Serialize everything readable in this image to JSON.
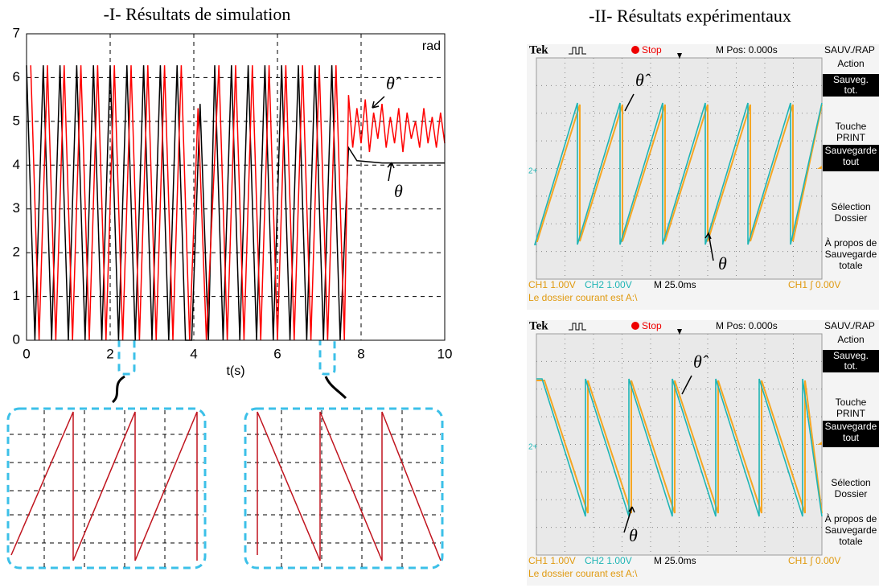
{
  "chart_data": {
    "type": "line",
    "title": "-I- Résultats de simulation",
    "xlabel": "t(s)",
    "unit": "rad",
    "xlim": [
      0,
      10
    ],
    "ylim": [
      0,
      7
    ],
    "xticks": [
      0,
      2,
      4,
      6,
      8,
      10
    ],
    "yticks": [
      0,
      1,
      2,
      3,
      4,
      5,
      6,
      7
    ],
    "grid": true,
    "series": [
      {
        "name": "θ",
        "color": "#000000",
        "x": [
          0,
          0.2,
          0.4,
          0.6,
          0.8,
          1.0,
          1.2,
          1.4,
          1.6,
          1.8,
          2.0,
          2.2,
          2.4,
          2.6,
          2.8,
          3.0,
          3.2,
          3.4,
          3.6,
          3.8,
          3.95,
          4.15,
          4.35,
          4.5,
          4.7,
          4.9,
          5.1,
          5.3,
          5.5,
          5.7,
          5.9,
          6.1,
          6.3,
          6.5,
          6.7,
          6.9,
          7.1,
          7.3,
          7.5,
          7.7,
          7.9,
          8.5,
          9,
          9.5,
          10
        ],
        "values": [
          6.28,
          0,
          6.28,
          0,
          6.28,
          0,
          6.28,
          0,
          6.28,
          0,
          6.28,
          0,
          6.28,
          0,
          6.28,
          0,
          6.28,
          0,
          6.28,
          0,
          0,
          5.4,
          0,
          6.28,
          0,
          6.28,
          0,
          6.28,
          0,
          6.28,
          0,
          6.28,
          0,
          6.28,
          0,
          6.28,
          0,
          6.28,
          0,
          4.4,
          4.1,
          4.05,
          4.05,
          4.05,
          4.05
        ]
      },
      {
        "name": "θ̂",
        "color": "#ff0000",
        "x": [
          0.1,
          0.3,
          0.5,
          0.7,
          0.9,
          1.1,
          1.3,
          1.5,
          1.7,
          1.9,
          2.1,
          2.3,
          2.5,
          2.7,
          2.9,
          3.1,
          3.3,
          3.5,
          3.7,
          3.9,
          4.1,
          4.3,
          4.6,
          4.8,
          5.0,
          5.2,
          5.4,
          5.6,
          5.8,
          6.0,
          6.2,
          6.4,
          6.6,
          6.8,
          7.0,
          7.2,
          7.4,
          7.6,
          7.7,
          7.8,
          7.9,
          8.0,
          8.1,
          8.2,
          8.3,
          8.4,
          8.5,
          8.6,
          8.7,
          8.8,
          8.9,
          9.0,
          9.1,
          9.2,
          9.3,
          9.4,
          9.5,
          9.6,
          9.7,
          9.8,
          9.9,
          10.0
        ],
        "values": [
          6.28,
          0,
          6.28,
          0,
          6.28,
          0,
          6.28,
          0,
          6.28,
          0,
          6.28,
          0,
          6.28,
          0,
          6.28,
          0,
          6.28,
          0,
          6.28,
          0,
          5.3,
          0,
          6.28,
          0,
          6.28,
          0,
          6.28,
          0,
          6.28,
          0,
          6.28,
          0,
          6.28,
          0,
          6.28,
          0,
          6.28,
          0,
          5.6,
          4.4,
          5.3,
          4.5,
          5.5,
          4.3,
          5.2,
          4.6,
          5.4,
          4.4,
          5.1,
          4.5,
          5.3,
          4.3,
          5.2,
          4.6,
          5.0,
          4.4,
          5.3,
          4.5,
          5.1,
          4.4,
          5.2,
          4.5
        ]
      }
    ]
  },
  "experimental_title": "-II- Résultats expérimentaux",
  "scopes": [
    {
      "brand": "Tek",
      "state": "Stop",
      "position": "M Pos: 0.000s",
      "menu_title": "SAUV./RAP",
      "menu": [
        {
          "label": [
            "Action"
          ],
          "value": [
            "Sauveg.",
            "tot."
          ]
        },
        {
          "label": [
            "Touche",
            "PRINT"
          ],
          "value": [
            "Sauvegarde",
            "tout"
          ]
        },
        {
          "label": [
            "Sélection",
            "Dossier"
          ]
        },
        {
          "label": [
            "À propos de",
            "Sauvegarde",
            "totale"
          ]
        }
      ],
      "marker": "2+",
      "ch1": "CH1  1.00V",
      "ch2": "CH2  1.00V",
      "timebase": "M 25.0ms",
      "trigger": "CH1 ∫ 0.00V",
      "status": "Le dossier courant est A:\\",
      "theta_hat": "θ̂",
      "theta": "θ"
    },
    {
      "brand": "Tek",
      "state": "Stop",
      "position": "M Pos: 0.000s",
      "menu_title": "SAUV./RAP",
      "menu": [
        {
          "label": [
            "Action"
          ],
          "value": [
            "Sauveg.",
            "tot."
          ]
        },
        {
          "label": [
            "Touche",
            "PRINT"
          ],
          "value": [
            "Sauvegarde",
            "tout"
          ]
        },
        {
          "label": [
            "Sélection",
            "Dossier"
          ]
        },
        {
          "label": [
            "À propos de",
            "Sauvegarde",
            "totale"
          ]
        }
      ],
      "marker": "2+",
      "ch1": "CH1  1.00V",
      "ch2": "CH2  1.00V",
      "timebase": "M 25.0ms",
      "trigger": "CH1 ∫ 0.00V",
      "status": "Le dossier courant est A:\\",
      "theta_hat": "θ̂",
      "theta": "θ"
    }
  ]
}
